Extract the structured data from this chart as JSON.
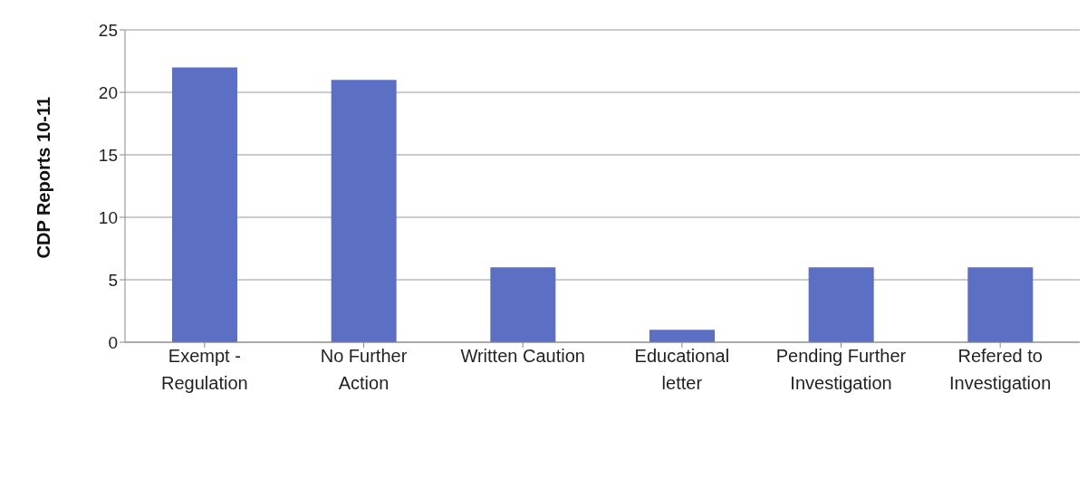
{
  "chart_data": {
    "type": "bar",
    "ylabel": "CDP Reports 10-11",
    "categories": [
      "Exempt - Regulation",
      "No Further Action",
      "Written Caution",
      "Educational letter",
      "Pending Further Investigation",
      "Refered to Investigation"
    ],
    "values": [
      22,
      21,
      6,
      1,
      6,
      6
    ],
    "color": "#5b6fc4",
    "ylim": [
      0,
      25
    ],
    "yticks": [
      0,
      5,
      10,
      15,
      20,
      25
    ],
    "grid": "y"
  }
}
